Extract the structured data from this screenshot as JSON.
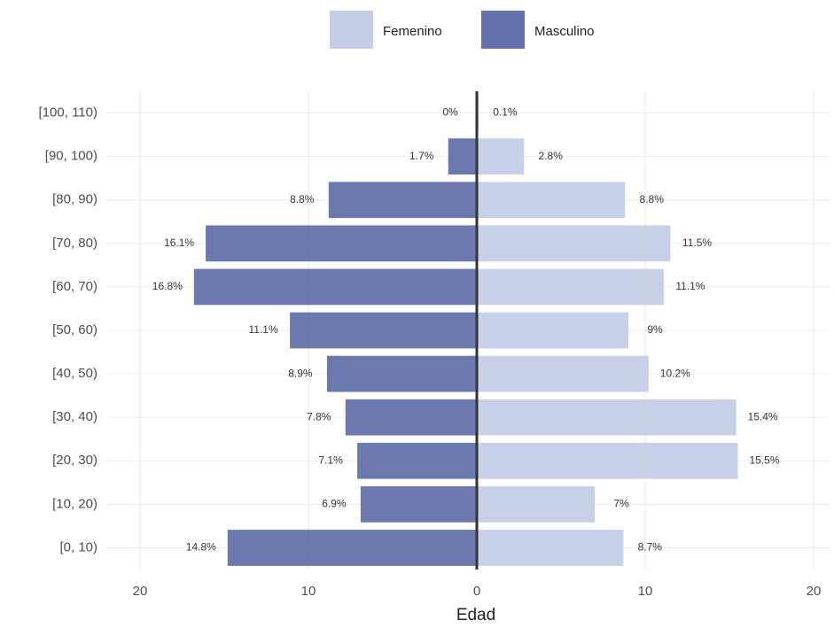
{
  "chart_data": {
    "type": "bar",
    "orientation": "horizontal",
    "xlabel": "Edad",
    "categories": [
      "[0, 10)",
      "[10, 20)",
      "[20, 30)",
      "[30, 40)",
      "[40, 50)",
      "[50, 60)",
      "[60, 70)",
      "[70, 80)",
      "[80, 90)",
      "[90, 100)",
      "[100, 110)"
    ],
    "series": [
      {
        "name": "Femenino",
        "color": "#c5cde6",
        "values": [
          8.7,
          7,
          15.5,
          15.4,
          10.2,
          9,
          11.1,
          11.5,
          8.8,
          2.8,
          0.1
        ],
        "value_labels": [
          "8.7%",
          "7%",
          "15.5%",
          "15.4%",
          "10.2%",
          "9%",
          "11.1%",
          "11.5%",
          "8.8%",
          "2.8%",
          "0.1%"
        ]
      },
      {
        "name": "Masculino",
        "color": "#6372aa",
        "values": [
          -14.8,
          -6.9,
          -7.1,
          -7.8,
          -8.9,
          -11.1,
          -16.8,
          -16.1,
          -8.8,
          -1.7,
          0
        ],
        "value_labels": [
          "14.8%",
          "6.9%",
          "7.1%",
          "7.8%",
          "8.9%",
          "11.1%",
          "16.8%",
          "16.1%",
          "8.8%",
          "1.7%",
          "0%"
        ]
      }
    ],
    "xlim": [
      -22,
      21
    ],
    "xticks": [
      {
        "value": -20,
        "label": "20"
      },
      {
        "value": -10,
        "label": "10"
      },
      0,
      10,
      20
    ],
    "grid": true,
    "zero_line": true,
    "legend": "top"
  }
}
